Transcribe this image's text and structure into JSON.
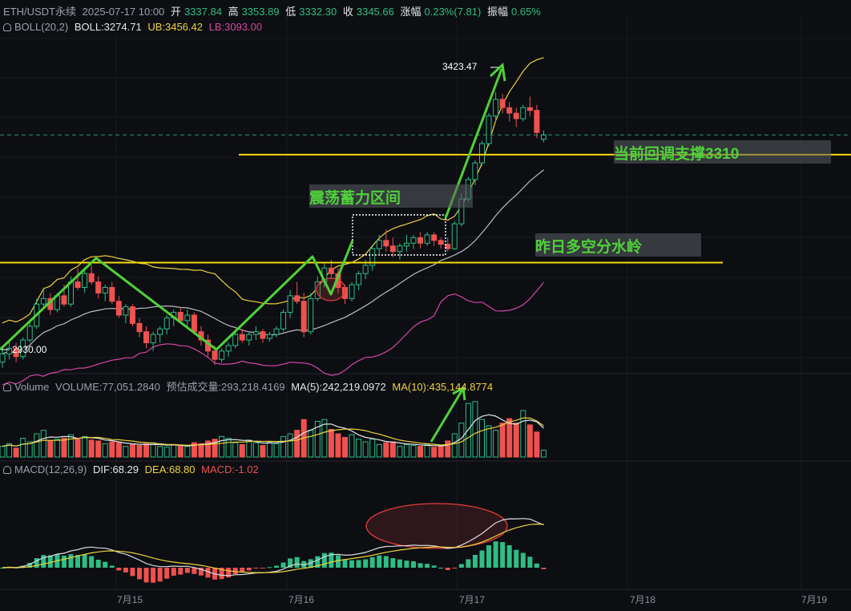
{
  "header": {
    "symbol": "ETH/USDT永续",
    "datetime": "2025-07-17 10:00",
    "open_label": "开",
    "open": "3337.84",
    "high_label": "高",
    "high": "3353.89",
    "low_label": "低",
    "low": "3332.30",
    "close_label": "收",
    "close": "3345.66",
    "change_label": "涨幅",
    "change": "0.23%(7.81)",
    "amp_label": "振幅",
    "amp": "0.65%"
  },
  "boll": {
    "label": "BOLL(20,2)",
    "boll": "BOLL:3274.71",
    "ub": "UB:3456.42",
    "lb": "LB:3093.00"
  },
  "volume": {
    "label": "Volume",
    "volume": "VOLUME:77,051.2840",
    "est": "预估成交量:293,218.4169",
    "ma5": "MA(5):242,219.0972",
    "ma10": "MA(10):435,144.8774"
  },
  "macd": {
    "label": "MACD(12,26,9)",
    "dif": "DIF:68.29",
    "dea": "DEA:68.80",
    "macd": "MACD:-1.02"
  },
  "annotations": {
    "high_price": "3423.47",
    "low_price": "2930.00",
    "support": "当前回调支撑3310",
    "range": "震荡蓄力区间",
    "watershed": "昨日多空分水岭"
  },
  "colors": {
    "up": "#2ebd85",
    "down": "#f0514f",
    "boll_mid": "#e4e6eb",
    "boll_ub": "#f0d23c",
    "boll_lb": "#d447a5",
    "arrow": "#4fd13a",
    "level": "#f5d90a"
  },
  "chart_data": {
    "type": "candlestick",
    "interval": "1h",
    "x_ticks": [
      "7月15",
      "7月16",
      "7月17",
      "7月18",
      "7月19"
    ],
    "price_range": [
      2920,
      3520
    ],
    "levels": [
      3310,
      3115
    ],
    "last_price": 3345.66,
    "candles": [
      [
        2935,
        2960,
        2925,
        2950
      ],
      [
        2950,
        2975,
        2940,
        2960
      ],
      [
        2960,
        2970,
        2935,
        2945
      ],
      [
        2945,
        2980,
        2940,
        2975
      ],
      [
        2975,
        3010,
        2970,
        3000
      ],
      [
        3000,
        3050,
        2995,
        3040
      ],
      [
        3040,
        3070,
        3030,
        3050
      ],
      [
        3050,
        3060,
        3020,
        3030
      ],
      [
        3030,
        3060,
        3025,
        3055
      ],
      [
        3055,
        3075,
        3035,
        3040
      ],
      [
        3040,
        3090,
        3035,
        3080
      ],
      [
        3080,
        3105,
        3065,
        3070
      ],
      [
        3070,
        3100,
        3060,
        3095
      ],
      [
        3095,
        3110,
        3075,
        3080
      ],
      [
        3080,
        3090,
        3050,
        3060
      ],
      [
        3060,
        3075,
        3045,
        3070
      ],
      [
        3070,
        3080,
        3040,
        3045
      ],
      [
        3045,
        3055,
        3015,
        3020
      ],
      [
        3020,
        3040,
        3005,
        3035
      ],
      [
        3035,
        3040,
        3000,
        3005
      ],
      [
        3005,
        3015,
        2980,
        2990
      ],
      [
        2990,
        3000,
        2960,
        2970
      ],
      [
        2970,
        2990,
        2955,
        2985
      ],
      [
        2985,
        3000,
        2970,
        2995
      ],
      [
        2995,
        3020,
        2985,
        3015
      ],
      [
        3015,
        3030,
        3000,
        3025
      ],
      [
        3025,
        3035,
        3005,
        3010
      ],
      [
        3010,
        3030,
        3000,
        3020
      ],
      [
        3020,
        3025,
        2985,
        2990
      ],
      [
        2990,
        3000,
        2965,
        2975
      ],
      [
        2975,
        2985,
        2945,
        2955
      ],
      [
        2955,
        2965,
        2930,
        2940
      ],
      [
        2940,
        2960,
        2935,
        2955
      ],
      [
        2955,
        2970,
        2945,
        2965
      ],
      [
        2965,
        2990,
        2960,
        2985
      ],
      [
        2985,
        2995,
        2970,
        2975
      ],
      [
        2975,
        2990,
        2965,
        2985
      ],
      [
        2985,
        3000,
        2975,
        2990
      ],
      [
        2990,
        2995,
        2970,
        2978
      ],
      [
        2978,
        2990,
        2972,
        2985
      ],
      [
        2985,
        3000,
        2980,
        2995
      ],
      [
        2995,
        3030,
        2990,
        3025
      ],
      [
        3025,
        3065,
        3015,
        3055
      ],
      [
        3055,
        3080,
        3040,
        3045
      ],
      [
        3045,
        3060,
        2980,
        2990
      ],
      [
        2990,
        3060,
        2985,
        3050
      ],
      [
        3050,
        3090,
        3045,
        3080
      ],
      [
        3080,
        3115,
        3070,
        3105
      ],
      [
        3105,
        3120,
        3085,
        3095
      ],
      [
        3095,
        3105,
        3060,
        3070
      ],
      [
        3070,
        3075,
        3040,
        3050
      ],
      [
        3050,
        3080,
        3045,
        3075
      ],
      [
        3075,
        3100,
        3065,
        3095
      ],
      [
        3095,
        3120,
        3085,
        3110
      ],
      [
        3110,
        3145,
        3100,
        3140
      ],
      [
        3140,
        3165,
        3130,
        3155
      ],
      [
        3155,
        3175,
        3135,
        3145
      ],
      [
        3145,
        3160,
        3125,
        3135
      ],
      [
        3135,
        3150,
        3120,
        3145
      ],
      [
        3145,
        3165,
        3135,
        3150
      ],
      [
        3150,
        3165,
        3140,
        3160
      ],
      [
        3160,
        3170,
        3140,
        3150
      ],
      [
        3150,
        3170,
        3145,
        3165
      ],
      [
        3165,
        3170,
        3145,
        3155
      ],
      [
        3155,
        3160,
        3140,
        3148
      ],
      [
        3148,
        3160,
        3135,
        3140
      ],
      [
        3140,
        3190,
        3138,
        3185
      ],
      [
        3185,
        3240,
        3180,
        3230
      ],
      [
        3230,
        3270,
        3225,
        3265
      ],
      [
        3265,
        3300,
        3255,
        3295
      ],
      [
        3295,
        3335,
        3290,
        3330
      ],
      [
        3330,
        3385,
        3325,
        3380
      ],
      [
        3380,
        3423,
        3370,
        3410
      ],
      [
        3410,
        3420,
        3385,
        3395
      ],
      [
        3395,
        3405,
        3370,
        3385
      ],
      [
        3385,
        3395,
        3360,
        3375
      ],
      [
        3375,
        3400,
        3370,
        3395
      ],
      [
        3395,
        3415,
        3380,
        3390
      ],
      [
        3390,
        3400,
        3340,
        3350
      ],
      [
        3337.84,
        3353.89,
        3332.3,
        3345.66
      ]
    ],
    "volume_range": [
      0,
      700000
    ],
    "volumes": [
      120000,
      150000,
      100000,
      210000,
      170000,
      260000,
      300000,
      180000,
      200000,
      210000,
      250000,
      200000,
      230000,
      190000,
      180000,
      150000,
      170000,
      160000,
      120000,
      140000,
      130000,
      150000,
      160000,
      120000,
      110000,
      140000,
      130000,
      120000,
      160000,
      150000,
      180000,
      200000,
      230000,
      210000,
      160000,
      140000,
      190000,
      160000,
      130000,
      170000,
      150000,
      230000,
      260000,
      300000,
      420000,
      300000,
      400000,
      420000,
      310000,
      260000,
      220000,
      250000,
      200000,
      170000,
      200000,
      140000,
      160000,
      170000,
      120000,
      140000,
      130000,
      120000,
      140000,
      110000,
      120000,
      180000,
      260000,
      380000,
      600000,
      620000,
      420000,
      350000,
      300000,
      380000,
      430000,
      380000,
      520000,
      360000,
      280000,
      77051
    ]
  }
}
